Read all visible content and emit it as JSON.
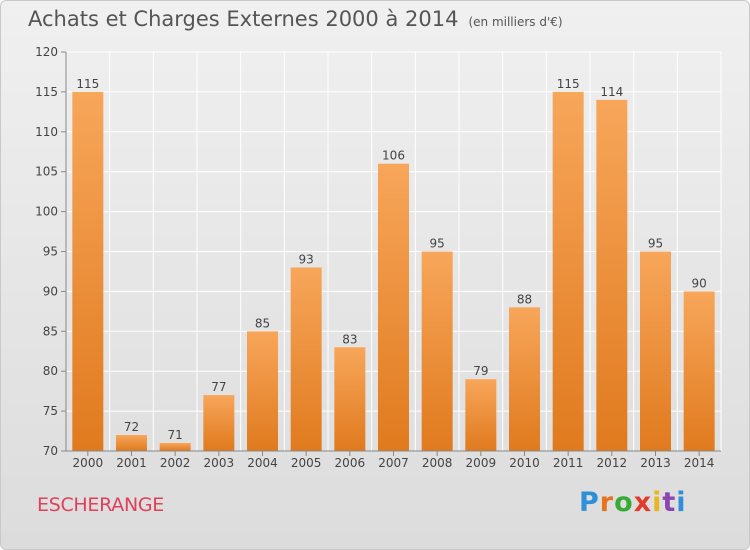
{
  "title": "Achats et Charges Externes 2000 à 2014",
  "unit_label": "(en milliers d'€)",
  "location": "ESCHERANGE",
  "brand": {
    "name": "Proxiti",
    "letter_colors": [
      "#2f8fd8",
      "#e8731e",
      "#3aaa35",
      "#e23b2e",
      "#e8b61e",
      "#8c44b0",
      "#2f8fd8"
    ]
  },
  "colors": {
    "bar_top": "#f7a65a",
    "bar_bottom": "#e07a1e",
    "grid": "#ffffff",
    "axis_text": "#444444",
    "value_text": "#444444"
  },
  "chart_data": {
    "type": "bar",
    "categories": [
      "2000",
      "2001",
      "2002",
      "2003",
      "2004",
      "2005",
      "2006",
      "2007",
      "2008",
      "2009",
      "2010",
      "2011",
      "2012",
      "2013",
      "2014"
    ],
    "values": [
      115,
      72,
      71,
      77,
      85,
      93,
      83,
      106,
      95,
      79,
      88,
      115,
      114,
      95,
      90
    ],
    "ylim": [
      70,
      120
    ],
    "yticks": [
      70,
      75,
      80,
      85,
      90,
      95,
      100,
      105,
      110,
      115,
      120
    ],
    "grid": true
  }
}
